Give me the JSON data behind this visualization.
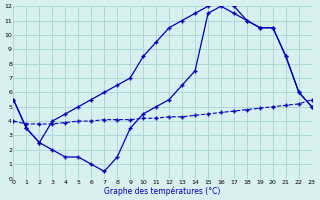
{
  "title": "Graphe des températures (°C)",
  "bg_color": "#d8f0f0",
  "grid_color": "#b0d8d8",
  "line_color": "#0000bb",
  "xlim": [
    0,
    23
  ],
  "ylim": [
    0,
    12
  ],
  "xticks": [
    0,
    1,
    2,
    3,
    4,
    5,
    6,
    7,
    8,
    9,
    10,
    11,
    12,
    13,
    14,
    15,
    16,
    17,
    18,
    19,
    20,
    21,
    22,
    23
  ],
  "yticks": [
    0,
    1,
    2,
    3,
    4,
    5,
    6,
    7,
    8,
    9,
    10,
    11,
    12
  ],
  "line1_x": [
    0,
    1,
    2,
    3,
    4,
    5,
    6,
    7,
    8,
    9,
    10,
    11,
    12,
    13,
    14,
    15,
    16,
    17,
    18,
    19,
    20,
    21,
    22,
    23
  ],
  "line1_y": [
    5.5,
    3.5,
    2.5,
    4.0,
    4.5,
    5.0,
    5.5,
    6.0,
    6.5,
    7.0,
    8.5,
    9.5,
    10.5,
    11.0,
    11.5,
    12.0,
    12.5,
    12.0,
    11.0,
    10.5,
    10.5,
    8.5,
    6.0,
    5.0
  ],
  "line2_x": [
    0,
    1,
    2,
    3,
    4,
    5,
    6,
    7,
    8,
    9,
    10,
    11,
    12,
    13,
    14,
    15,
    16,
    17,
    18,
    19,
    20,
    21,
    22,
    23
  ],
  "line2_y": [
    5.5,
    3.5,
    2.5,
    2.0,
    1.5,
    1.5,
    1.0,
    0.5,
    1.5,
    3.5,
    4.5,
    5.0,
    5.5,
    6.5,
    7.5,
    11.5,
    12.0,
    11.5,
    11.0,
    10.5,
    10.5,
    8.5,
    6.0,
    5.0
  ],
  "line3_x": [
    0,
    1,
    2,
    3,
    4,
    5,
    6,
    7,
    8,
    9,
    10,
    11,
    12,
    13,
    14,
    15,
    16,
    17,
    18,
    19,
    20,
    21,
    22,
    23
  ],
  "line3_y": [
    4.0,
    3.8,
    3.8,
    3.8,
    3.9,
    4.0,
    4.0,
    4.1,
    4.1,
    4.1,
    4.2,
    4.2,
    4.3,
    4.3,
    4.4,
    4.5,
    4.6,
    4.7,
    4.8,
    4.9,
    5.0,
    5.1,
    5.2,
    5.5
  ]
}
